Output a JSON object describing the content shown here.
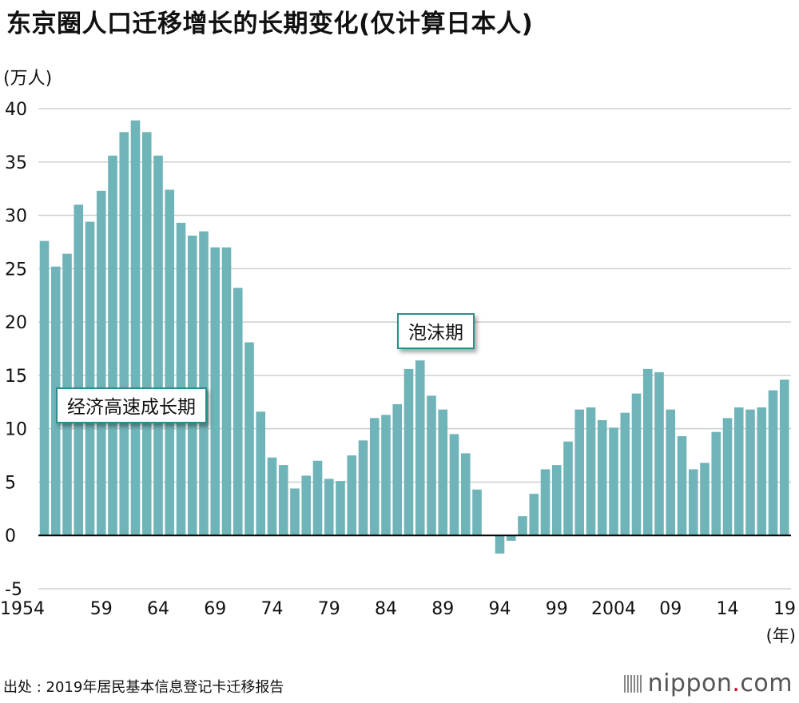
{
  "title": "东京圈人口迁移增长的长期变化(仅计算日本人)",
  "unit_label": "(万人)",
  "x_unit_label": "(年)",
  "source": "出处 : 2019年居民基本信息登记卡迁移报告",
  "logo": {
    "name": "nippon",
    "dot": ".",
    "suffix": "com",
    "icon": "bars-icon"
  },
  "colors": {
    "bar": "#6fb4b8",
    "grid": "#cfcfcf",
    "axis": "#000000",
    "annotation_border": "#2a8f8c"
  },
  "annotations": [
    {
      "text": "经济高速成长期"
    },
    {
      "text": "泡沫期"
    }
  ],
  "chart_data": {
    "type": "bar",
    "title": "东京圈人口迁移增长的长期变化(仅计算日本人)",
    "xlabel": "(年)",
    "ylabel": "(万人)",
    "ylim": [
      -5,
      40
    ],
    "yticks": [
      -5,
      0,
      5,
      10,
      15,
      20,
      25,
      30,
      35,
      40
    ],
    "grid": true,
    "categories": [
      1954,
      1955,
      1956,
      1957,
      1958,
      1959,
      1960,
      1961,
      1962,
      1963,
      1964,
      1965,
      1966,
      1967,
      1968,
      1969,
      1970,
      1971,
      1972,
      1973,
      1974,
      1975,
      1976,
      1977,
      1978,
      1979,
      1980,
      1981,
      1982,
      1983,
      1984,
      1985,
      1986,
      1987,
      1988,
      1989,
      1990,
      1991,
      1992,
      1993,
      1994,
      1995,
      1996,
      1997,
      1998,
      1999,
      2000,
      2001,
      2002,
      2003,
      2004,
      2005,
      2006,
      2007,
      2008,
      2009,
      2010,
      2011,
      2012,
      2013,
      2014,
      2015,
      2016,
      2017,
      2018,
      2019
    ],
    "values": [
      27.6,
      25.2,
      26.4,
      31.0,
      29.4,
      32.3,
      35.6,
      37.8,
      38.9,
      37.8,
      35.6,
      32.4,
      29.3,
      28.1,
      28.5,
      27.0,
      27.0,
      23.2,
      18.1,
      11.6,
      7.3,
      6.6,
      4.4,
      5.6,
      7.0,
      5.3,
      5.1,
      7.5,
      8.9,
      11.0,
      11.3,
      12.3,
      15.6,
      16.4,
      13.1,
      11.8,
      9.5,
      7.7,
      4.3,
      0.0,
      -1.7,
      -0.5,
      1.8,
      3.9,
      6.2,
      6.6,
      8.8,
      11.8,
      12.0,
      10.8,
      10.1,
      11.5,
      13.3,
      15.6,
      15.3,
      11.8,
      9.3,
      6.2,
      6.8,
      9.7,
      11.0,
      12.0,
      11.8,
      12.0,
      13.6,
      14.6
    ],
    "xtick_labels": [
      {
        "index": 0,
        "label": "1954"
      },
      {
        "index": 5,
        "label": "59"
      },
      {
        "index": 10,
        "label": "64"
      },
      {
        "index": 15,
        "label": "69"
      },
      {
        "index": 20,
        "label": "74"
      },
      {
        "index": 25,
        "label": "79"
      },
      {
        "index": 30,
        "label": "84"
      },
      {
        "index": 35,
        "label": "89"
      },
      {
        "index": 40,
        "label": "94"
      },
      {
        "index": 45,
        "label": "99"
      },
      {
        "index": 50,
        "label": "2004"
      },
      {
        "index": 55,
        "label": "09"
      },
      {
        "index": 60,
        "label": "14"
      },
      {
        "index": 65,
        "label": "19"
      }
    ]
  }
}
